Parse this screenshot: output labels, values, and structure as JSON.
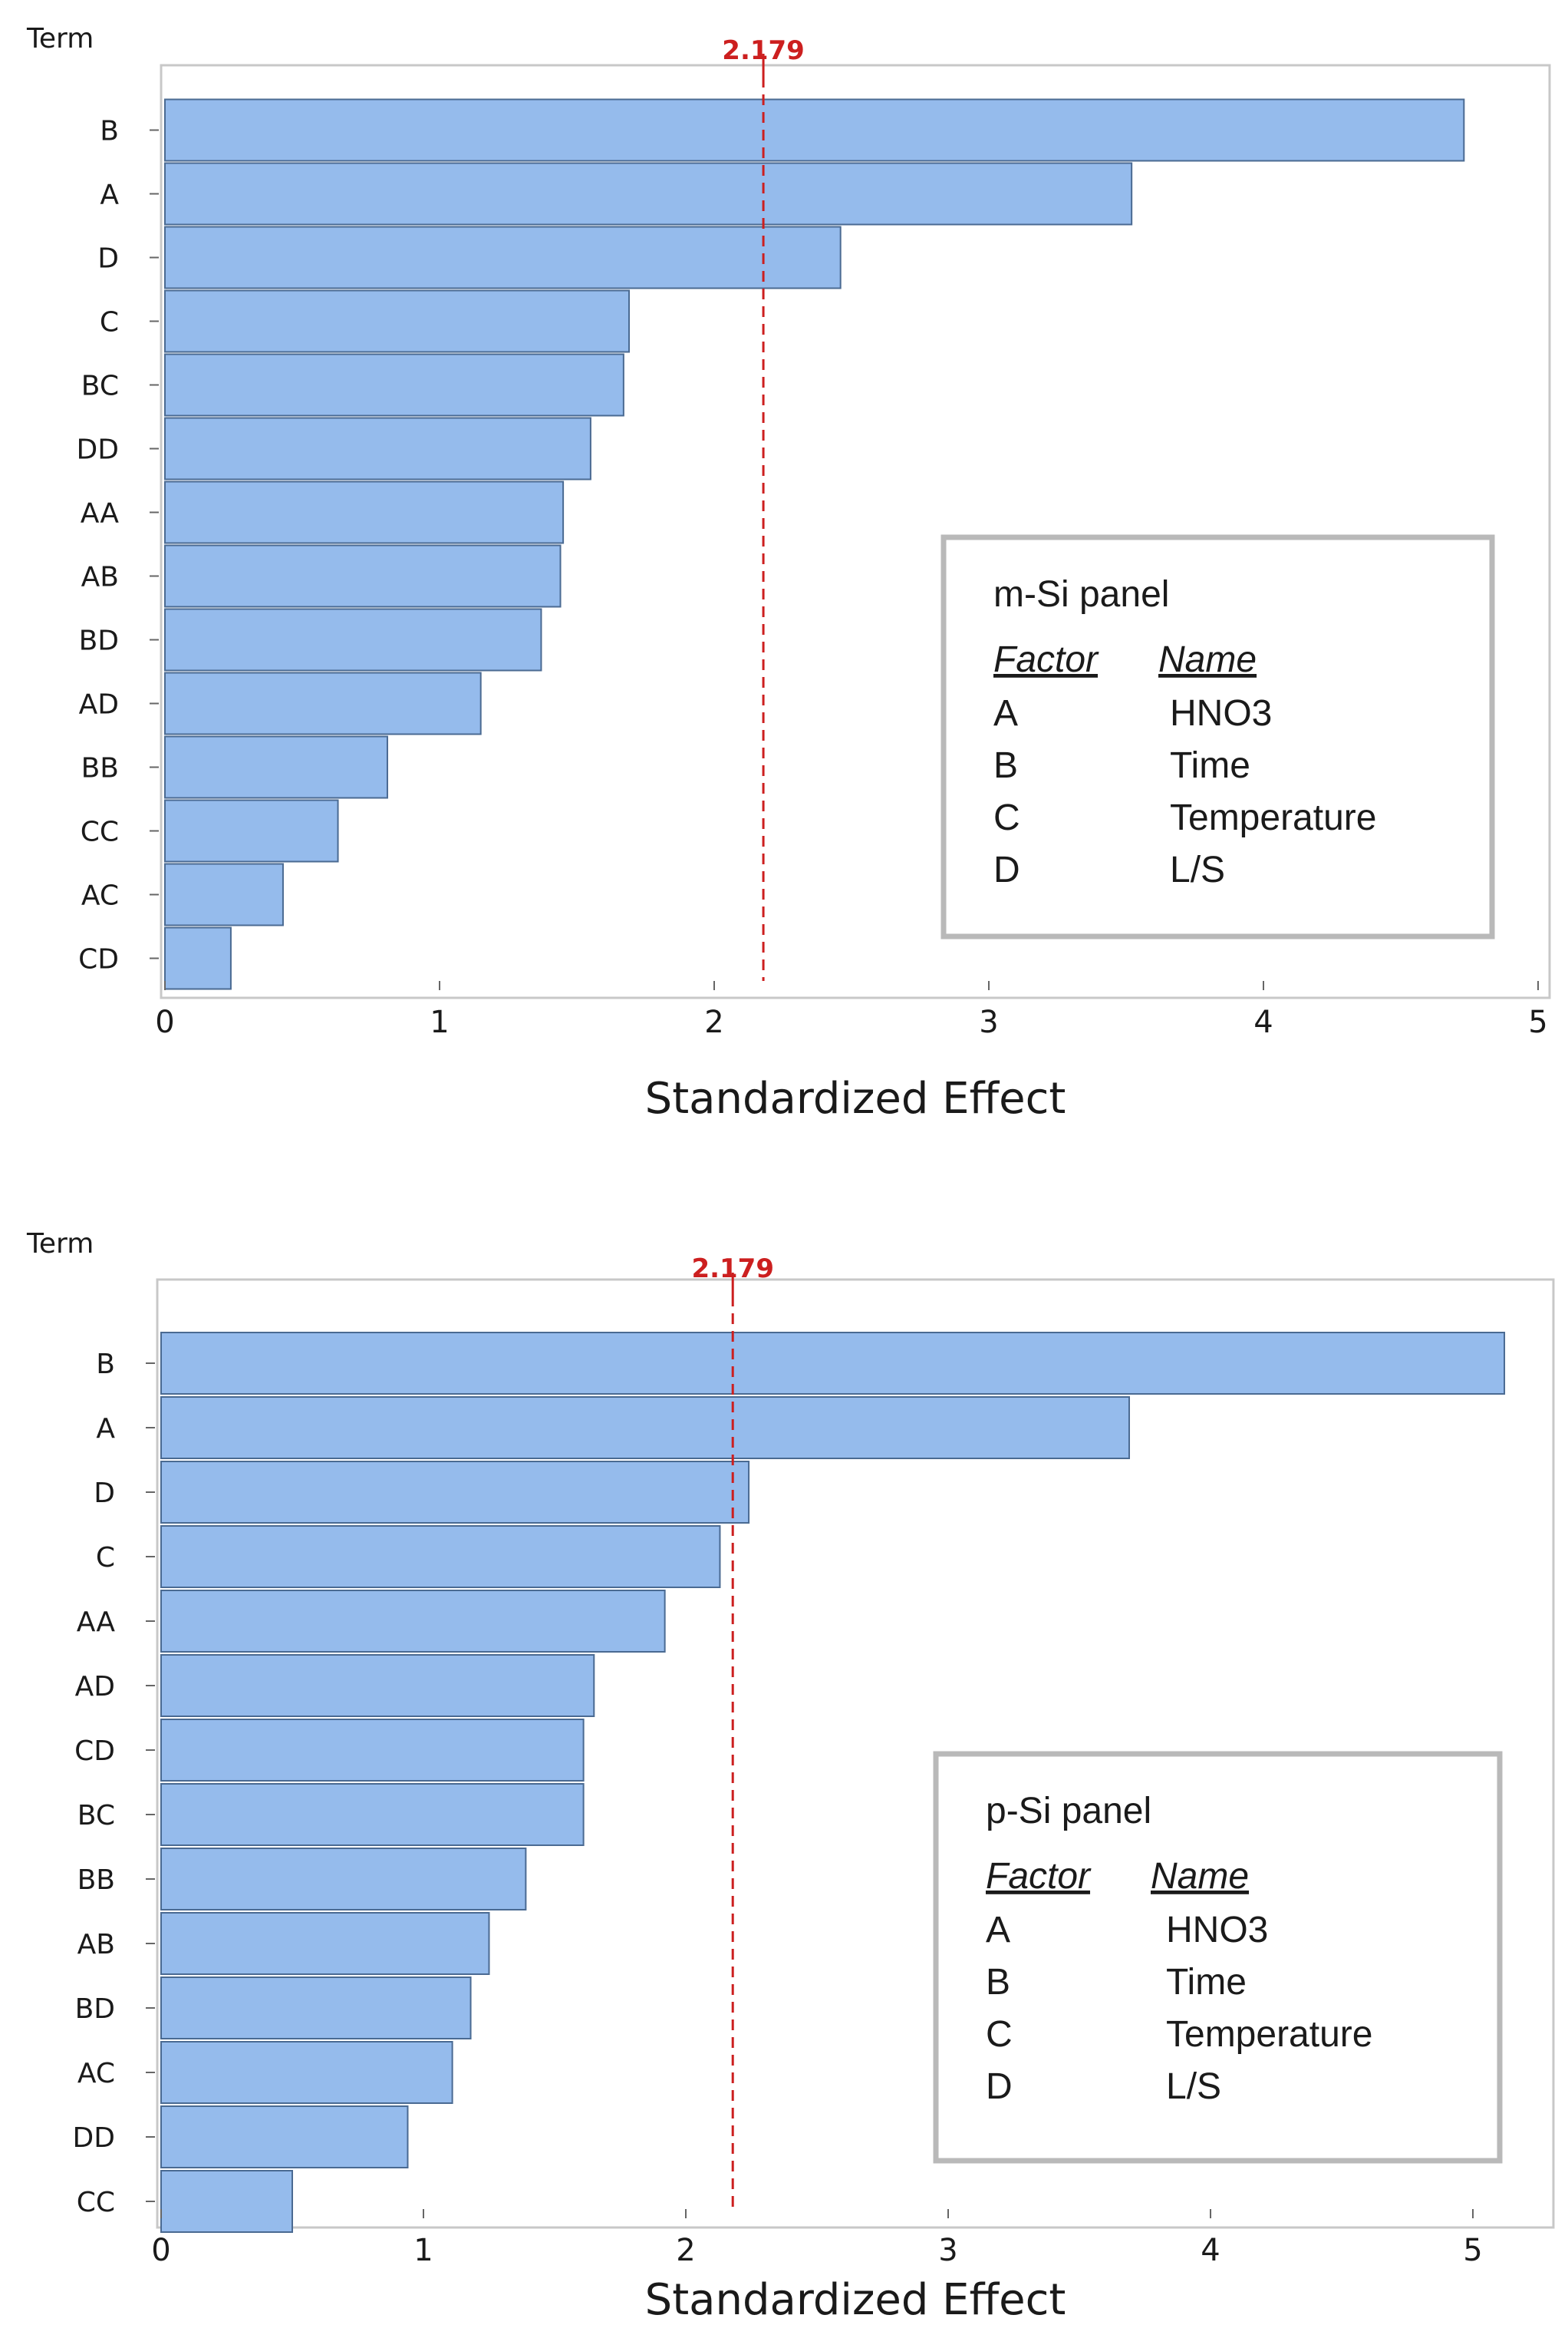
{
  "chart_data": [
    {
      "type": "bar",
      "orientation": "horizontal",
      "yaxis_label": "Term",
      "xlabel": "Standardized Effect",
      "xlim": [
        0,
        5
      ],
      "xticks": [
        "0",
        "1",
        "2",
        "3",
        "4",
        "5"
      ],
      "reference_line": {
        "value": 2.179,
        "label": "2.179",
        "color": "#cc1f1f"
      },
      "bar_color": "#95bbec",
      "categories": [
        "B",
        "A",
        "D",
        "C",
        "BC",
        "DD",
        "AA",
        "AB",
        "BD",
        "AD",
        "BB",
        "CC",
        "AC",
        "CD"
      ],
      "values": [
        4.73,
        3.52,
        2.46,
        1.69,
        1.67,
        1.55,
        1.45,
        1.44,
        1.37,
        1.15,
        0.81,
        0.63,
        0.43,
        0.24
      ],
      "legend": {
        "title": "m-Si panel",
        "header_factor": "Factor",
        "header_name": "Name",
        "rows": [
          {
            "factor": "A",
            "name": "HNO3"
          },
          {
            "factor": "B",
            "name": "Time"
          },
          {
            "factor": "C",
            "name": "Temperature"
          },
          {
            "factor": "D",
            "name": "L/S"
          }
        ]
      }
    },
    {
      "type": "bar",
      "orientation": "horizontal",
      "yaxis_label": "Term",
      "xlabel": "Standardized Effect",
      "xlim": [
        0,
        5.45
      ],
      "xticks": [
        "0",
        "1",
        "2",
        "3",
        "4",
        "5"
      ],
      "reference_line": {
        "value": 2.179,
        "label": "2.179",
        "color": "#cc1f1f"
      },
      "bar_color": "#95bbec",
      "categories": [
        "B",
        "A",
        "D",
        "C",
        "AA",
        "AD",
        "CD",
        "BC",
        "BB",
        "AB",
        "BD",
        "AC",
        "DD",
        "CC"
      ],
      "values": [
        5.12,
        3.69,
        2.24,
        2.13,
        1.92,
        1.65,
        1.61,
        1.61,
        1.39,
        1.25,
        1.18,
        1.11,
        0.94,
        0.5
      ],
      "legend": {
        "title": "p-Si panel",
        "header_factor": "Factor",
        "header_name": "Name",
        "rows": [
          {
            "factor": "A",
            "name": "HNO3"
          },
          {
            "factor": "B",
            "name": "Time"
          },
          {
            "factor": "C",
            "name": "Temperature"
          },
          {
            "factor": "D",
            "name": "L/S"
          }
        ]
      }
    }
  ]
}
